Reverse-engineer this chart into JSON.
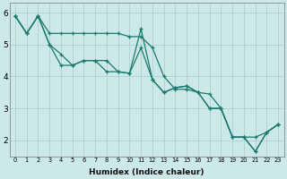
{
  "xlabel": "Humidex (Indice chaleur)",
  "bg_color": "#cce8e8",
  "grid_color": "#aacccc",
  "line_color": "#1a7a6e",
  "xlim": [
    -0.5,
    23.5
  ],
  "ylim": [
    1.5,
    6.3
  ],
  "yticks": [
    2,
    3,
    4,
    5,
    6
  ],
  "xticks": [
    0,
    1,
    2,
    3,
    4,
    5,
    6,
    7,
    8,
    9,
    10,
    11,
    12,
    13,
    14,
    15,
    16,
    17,
    18,
    19,
    20,
    21,
    22,
    23
  ],
  "line1_x": [
    0,
    1,
    2,
    3,
    4,
    5,
    6,
    7,
    8,
    9,
    10,
    11,
    12,
    13,
    14,
    15,
    16,
    17,
    18,
    19,
    20,
    21,
    22,
    23
  ],
  "line1_y": [
    5.9,
    5.35,
    5.9,
    5.35,
    5.35,
    5.35,
    5.35,
    5.35,
    5.35,
    5.35,
    5.25,
    5.25,
    4.9,
    4.0,
    3.6,
    3.6,
    3.5,
    3.45,
    3.0,
    2.1,
    2.1,
    2.1,
    2.25,
    2.5
  ],
  "line2_x": [
    0,
    1,
    2,
    3,
    4,
    5,
    6,
    7,
    8,
    9,
    10,
    11,
    12,
    13,
    14,
    15,
    16,
    17,
    18,
    19,
    20,
    21,
    22,
    23
  ],
  "line2_y": [
    5.9,
    5.35,
    5.9,
    5.0,
    4.7,
    4.35,
    4.5,
    4.5,
    4.5,
    4.15,
    4.1,
    5.5,
    3.9,
    3.5,
    3.65,
    3.7,
    3.5,
    3.0,
    3.0,
    2.1,
    2.1,
    1.65,
    2.25,
    2.5
  ],
  "line3_x": [
    0,
    1,
    2,
    3,
    4,
    5,
    6,
    7,
    8,
    9,
    10,
    11,
    12,
    13,
    14,
    15,
    16,
    17,
    18,
    19,
    20,
    21,
    22,
    23
  ],
  "line3_y": [
    5.9,
    5.35,
    5.9,
    5.0,
    4.35,
    4.35,
    4.5,
    4.5,
    4.15,
    4.15,
    4.1,
    4.9,
    3.9,
    3.5,
    3.65,
    3.7,
    3.5,
    3.0,
    3.0,
    2.1,
    2.1,
    1.65,
    2.25,
    2.5
  ]
}
